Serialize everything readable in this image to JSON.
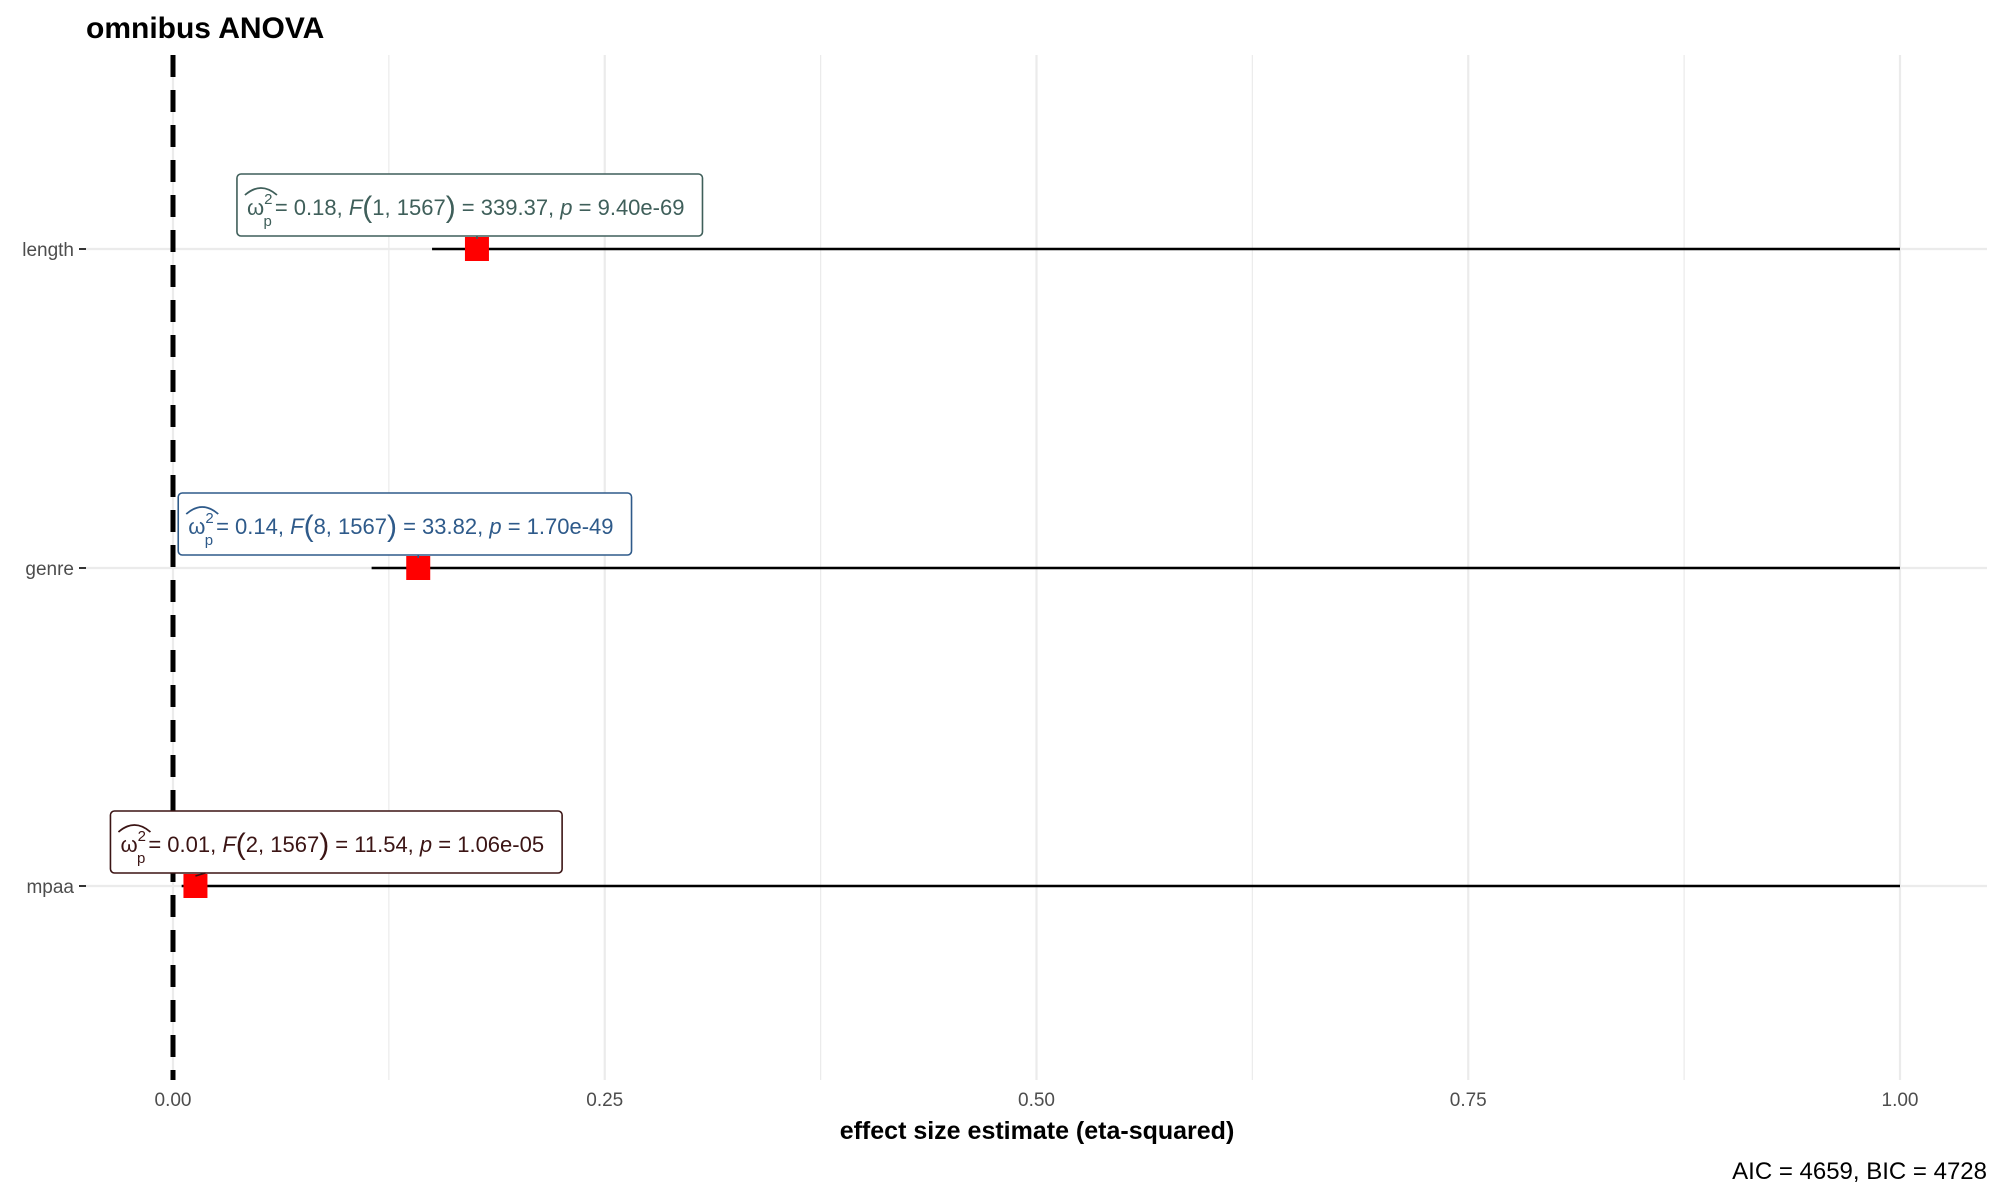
{
  "chart_data": {
    "type": "forest",
    "title": "omnibus ANOVA",
    "xlabel": "effect size estimate (eta-squared)",
    "ylabel": "",
    "xlim": [
      -0.05,
      1.05
    ],
    "x_ticks": [
      0.0,
      0.25,
      0.5,
      0.75,
      1.0
    ],
    "x_tick_labels": [
      "0.00",
      "0.25",
      "0.50",
      "0.75",
      "1.00"
    ],
    "grid": true,
    "reference_line": 0,
    "caption": "AIC = 4659, BIC = 4728",
    "terms": [
      {
        "term": "length",
        "estimate": 0.176,
        "conf_low": 0.15,
        "conf_high": 1.0,
        "color": "#3f5f5a",
        "label": {
          "symbol": "ω",
          "superscript": "2",
          "subscript": "p",
          "estimate_text": "= 0.18, ",
          "stat": "F",
          "df": "1, 1567",
          "stat_value_text": "= 339.37, ",
          "p_symbol": "p",
          "p_value_text": "= 9.40e-69"
        }
      },
      {
        "term": "genre",
        "estimate": 0.142,
        "conf_low": 0.115,
        "conf_high": 1.0,
        "color": "#2e5a8a",
        "label": {
          "symbol": "ω",
          "superscript": "2",
          "subscript": "p",
          "estimate_text": "= 0.14, ",
          "stat": "F",
          "df": "8, 1567",
          "stat_value_text": "= 33.82, ",
          "p_symbol": "p",
          "p_value_text": "= 1.70e-49"
        }
      },
      {
        "term": "mpaa",
        "estimate": 0.013,
        "conf_low": 0.005,
        "conf_high": 1.0,
        "color": "#3b1414",
        "label": {
          "symbol": "ω",
          "superscript": "2",
          "subscript": "p",
          "estimate_text": "= 0.01, ",
          "stat": "F",
          "df": "2, 1567",
          "stat_value_text": "= 11.54, ",
          "p_symbol": "p",
          "p_value_text": "= 1.06e-05"
        }
      }
    ],
    "colors": {
      "point": "#ff0000",
      "ci_line": "#000000",
      "reference_line": "#000000",
      "grid": "#ebebeb"
    }
  }
}
